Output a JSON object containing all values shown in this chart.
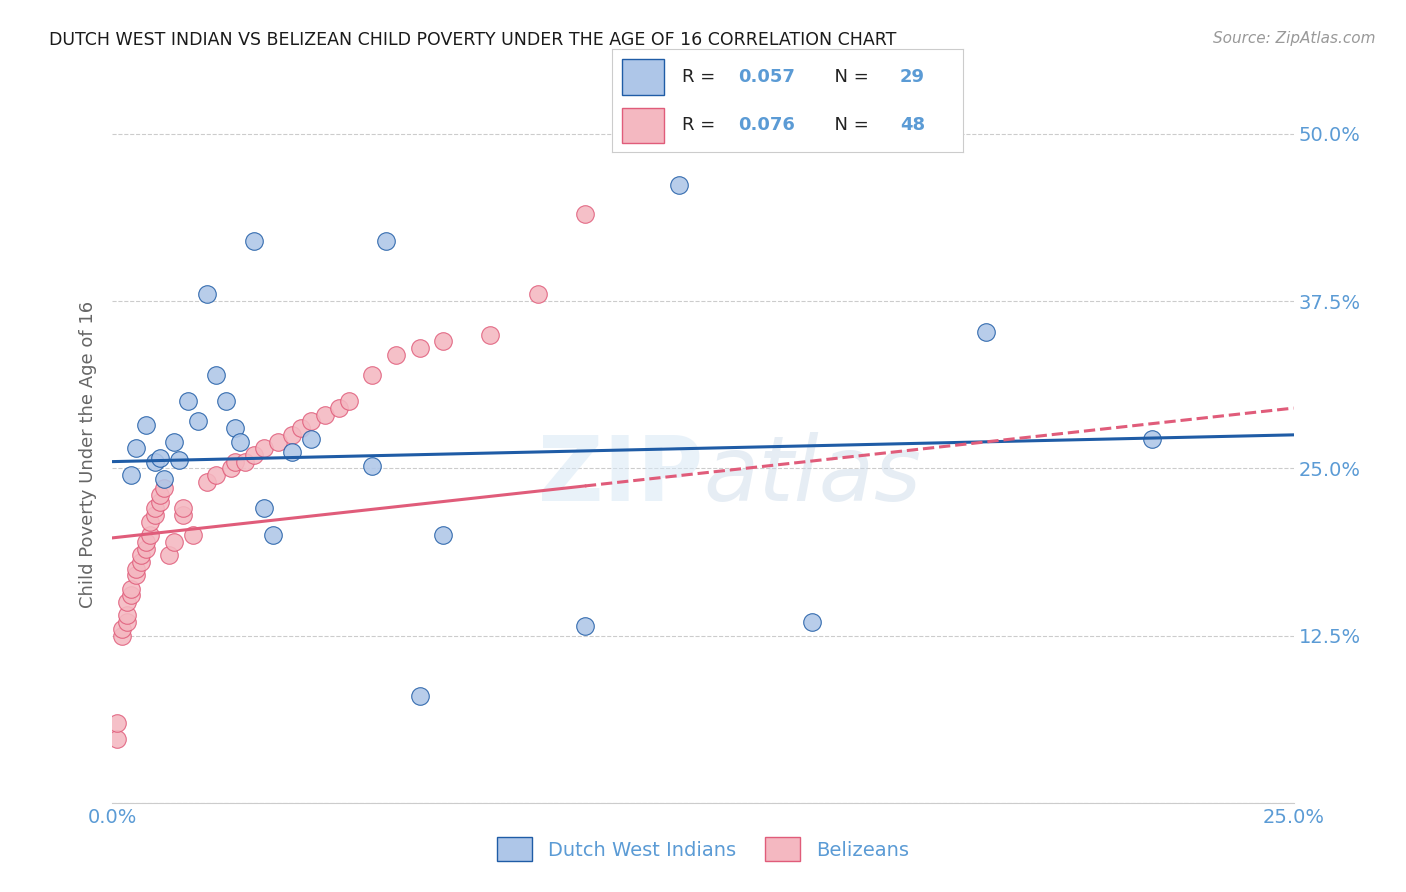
{
  "title": "DUTCH WEST INDIAN VS BELIZEAN CHILD POVERTY UNDER THE AGE OF 16 CORRELATION CHART",
  "source": "Source: ZipAtlas.com",
  "ylabel": "Child Poverty Under the Age of 16",
  "xlim": [
    0.0,
    0.25
  ],
  "ylim": [
    0.0,
    0.52
  ],
  "yticks": [
    0.0,
    0.125,
    0.25,
    0.375,
    0.5
  ],
  "ytick_labels": [
    "",
    "12.5%",
    "25.0%",
    "37.5%",
    "50.0%"
  ],
  "watermark": "ZIPAtlas",
  "dutch_x": [
    0.004,
    0.005,
    0.007,
    0.009,
    0.01,
    0.011,
    0.013,
    0.014,
    0.016,
    0.018,
    0.02,
    0.022,
    0.024,
    0.026,
    0.027,
    0.03,
    0.032,
    0.034,
    0.038,
    0.042,
    0.055,
    0.058,
    0.065,
    0.07,
    0.1,
    0.12,
    0.148,
    0.185,
    0.22
  ],
  "dutch_y": [
    0.245,
    0.265,
    0.282,
    0.255,
    0.258,
    0.242,
    0.27,
    0.256,
    0.3,
    0.285,
    0.38,
    0.32,
    0.3,
    0.28,
    0.27,
    0.42,
    0.22,
    0.2,
    0.262,
    0.272,
    0.252,
    0.42,
    0.08,
    0.2,
    0.132,
    0.462,
    0.135,
    0.352,
    0.272
  ],
  "belizean_x": [
    0.001,
    0.001,
    0.002,
    0.002,
    0.003,
    0.003,
    0.003,
    0.004,
    0.004,
    0.005,
    0.005,
    0.006,
    0.006,
    0.007,
    0.007,
    0.008,
    0.008,
    0.009,
    0.009,
    0.01,
    0.01,
    0.011,
    0.012,
    0.013,
    0.015,
    0.015,
    0.017,
    0.02,
    0.022,
    0.025,
    0.026,
    0.028,
    0.03,
    0.032,
    0.035,
    0.038,
    0.04,
    0.042,
    0.045,
    0.048,
    0.05,
    0.055,
    0.06,
    0.065,
    0.07,
    0.08,
    0.09,
    0.1
  ],
  "belizean_y": [
    0.048,
    0.06,
    0.125,
    0.13,
    0.135,
    0.14,
    0.15,
    0.155,
    0.16,
    0.17,
    0.175,
    0.18,
    0.185,
    0.19,
    0.195,
    0.2,
    0.21,
    0.215,
    0.22,
    0.225,
    0.23,
    0.235,
    0.185,
    0.195,
    0.215,
    0.22,
    0.2,
    0.24,
    0.245,
    0.25,
    0.255,
    0.255,
    0.26,
    0.265,
    0.27,
    0.275,
    0.28,
    0.285,
    0.29,
    0.295,
    0.3,
    0.32,
    0.335,
    0.34,
    0.345,
    0.35,
    0.38,
    0.44
  ],
  "blue_color": "#aec6e8",
  "pink_color": "#f4b8c1",
  "blue_line_color": "#1f5ca6",
  "pink_line_color": "#e05c7a",
  "title_color": "#1a1a1a",
  "axis_color": "#5b9bd5",
  "grid_color": "#cccccc",
  "background_color": "#ffffff",
  "blue_r": "0.057",
  "blue_n": "29",
  "pink_r": "0.076",
  "pink_n": "48"
}
